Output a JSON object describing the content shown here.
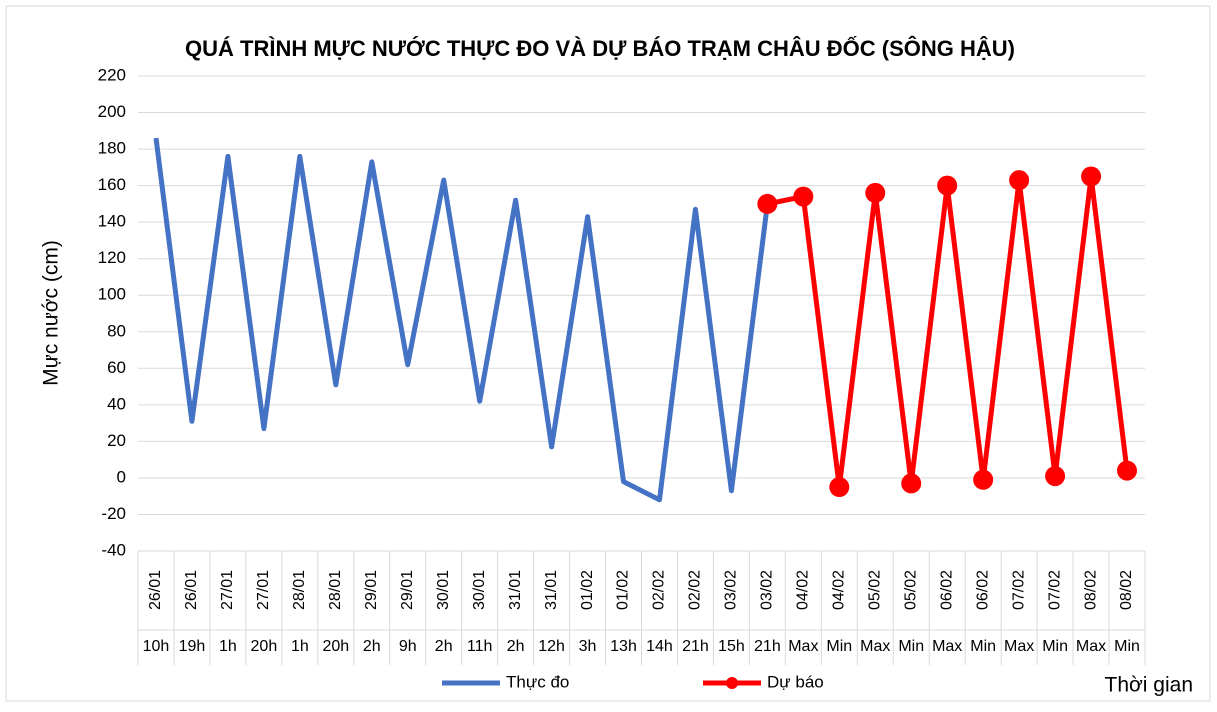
{
  "chart_data": {
    "type": "line",
    "title": "QUÁ TRÌNH MỰC NƯỚC THỰC ĐO VÀ DỰ BÁO TRẠM CHÂU ĐỐC (SÔNG HẬU)",
    "y_label": "Mực nước (cm)",
    "x_label": "Thời gian",
    "categories": [
      "26/01",
      "26/01",
      "27/01",
      "27/01",
      "28/01",
      "28/01",
      "29/01",
      "29/01",
      "30/01",
      "30/01",
      "31/01",
      "31/01",
      "01/02",
      "01/02",
      "02/02",
      "02/02",
      "03/02",
      "03/02",
      "04/02",
      "04/02",
      "05/02",
      "05/02",
      "06/02",
      "06/02",
      "07/02",
      "07/02",
      "08/02",
      "08/02"
    ],
    "subcategories": [
      "10h",
      "19h",
      "1h",
      "20h",
      "1h",
      "20h",
      "2h",
      "9h",
      "2h",
      "11h",
      "2h",
      "12h",
      "3h",
      "13h",
      "14h",
      "21h",
      "15h",
      "21h",
      "Max",
      "Min",
      "Max",
      "Min",
      "Max",
      "Min",
      "Max",
      "Min",
      "Max",
      "Min"
    ],
    "series": [
      {
        "name": "Thực đo",
        "color": "#4472c4",
        "marker": false,
        "values": [
          186,
          31,
          176,
          27,
          176,
          51,
          173,
          62,
          163,
          42,
          152,
          17,
          143,
          -2,
          -12,
          147,
          -7,
          150,
          null,
          null,
          null,
          null,
          null,
          null,
          null,
          null,
          null,
          null
        ]
      },
      {
        "name": "Dự báo",
        "color": "#ff0000",
        "marker": true,
        "values": [
          null,
          null,
          null,
          null,
          null,
          null,
          null,
          null,
          null,
          null,
          null,
          null,
          null,
          null,
          null,
          null,
          null,
          150,
          154,
          -5,
          156,
          -3,
          160,
          -1,
          163,
          1,
          165,
          4
        ]
      }
    ],
    "ylim": [
      -40,
      220
    ],
    "yticks": [
      -40,
      -20,
      0,
      20,
      40,
      60,
      80,
      100,
      120,
      140,
      160,
      180,
      200,
      220
    ],
    "grid": true,
    "legend": "bottom"
  }
}
